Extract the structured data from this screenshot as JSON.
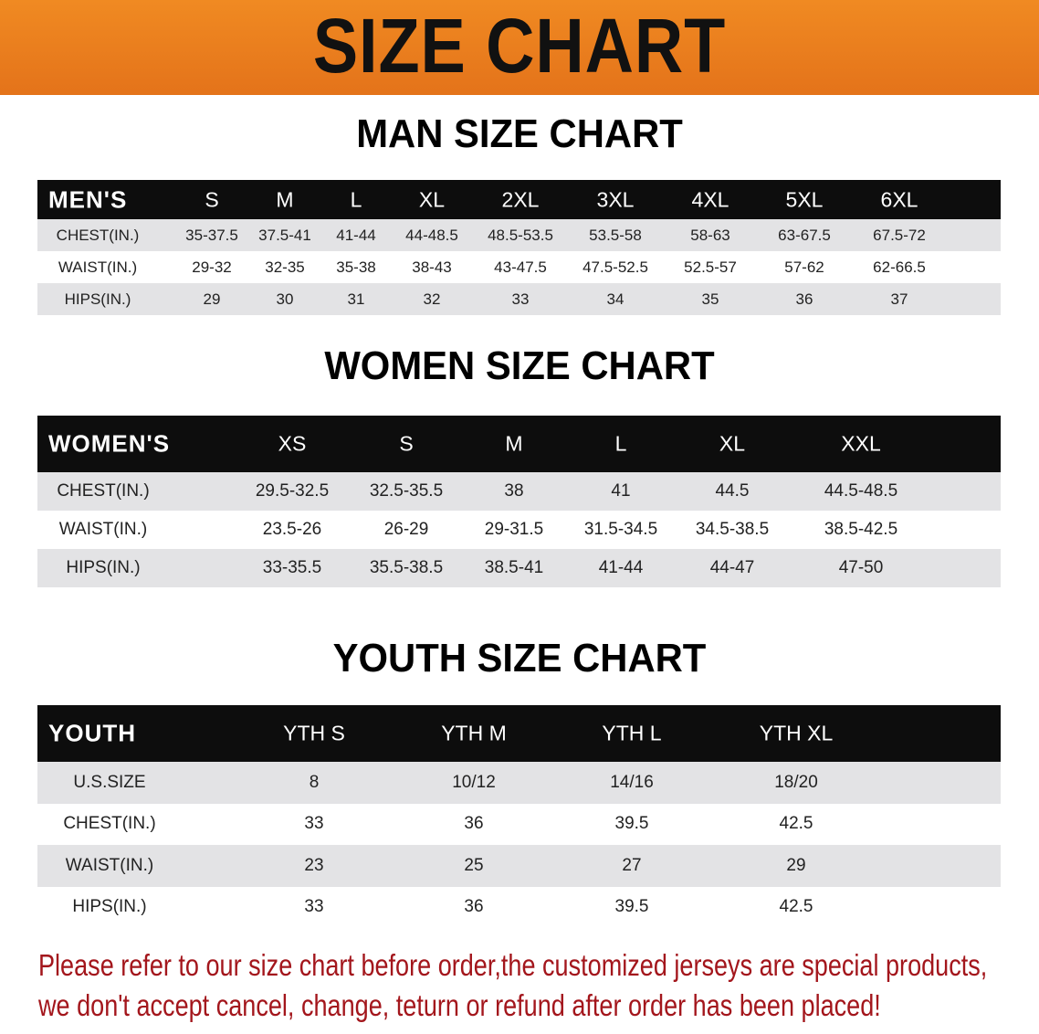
{
  "banner": {
    "title": "SIZE CHART",
    "color": "#e97c1e"
  },
  "men": {
    "title": "MAN SIZE CHART",
    "header": [
      "MEN'S",
      "S",
      "M",
      "L",
      "XL",
      "2XL",
      "3XL",
      "4XL",
      "5XL",
      "6XL"
    ],
    "rows": [
      [
        "CHEST(IN.)",
        "35-37.5",
        "37.5-41",
        "41-44",
        "44-48.5",
        "48.5-53.5",
        "53.5-58",
        "58-63",
        "63-67.5",
        "67.5-72"
      ],
      [
        "WAIST(IN.)",
        "29-32",
        "32-35",
        "35-38",
        "38-43",
        "43-47.5",
        "47.5-52.5",
        "52.5-57",
        "57-62",
        "62-66.5"
      ],
      [
        "HIPS(IN.)",
        "29",
        "30",
        "31",
        "32",
        "33",
        "34",
        "35",
        "36",
        "37"
      ]
    ]
  },
  "women": {
    "title": "WOMEN SIZE CHART",
    "header": [
      "WOMEN'S",
      "XS",
      "S",
      "M",
      "L",
      "XL",
      "XXL"
    ],
    "rows": [
      [
        "CHEST(IN.)",
        "29.5-32.5",
        "32.5-35.5",
        "38",
        "41",
        "44.5",
        "44.5-48.5"
      ],
      [
        "WAIST(IN.)",
        "23.5-26",
        "26-29",
        "29-31.5",
        "31.5-34.5",
        "34.5-38.5",
        "38.5-42.5"
      ],
      [
        "HIPS(IN.)",
        "33-35.5",
        "35.5-38.5",
        "38.5-41",
        "41-44",
        "44-47",
        "47-50"
      ]
    ]
  },
  "youth": {
    "title": "YOUTH SIZE CHART",
    "header": [
      "YOUTH",
      "YTH S",
      "YTH M",
      "YTH L",
      "YTH XL"
    ],
    "rows": [
      [
        "U.S.SIZE",
        "8",
        "10/12",
        "14/16",
        "18/20"
      ],
      [
        "CHEST(IN.)",
        "33",
        "36",
        "39.5",
        "42.5"
      ],
      [
        "WAIST(IN.)",
        "23",
        "25",
        "27",
        "29"
      ],
      [
        "HIPS(IN.)",
        "33",
        "36",
        "39.5",
        "42.5"
      ]
    ]
  },
  "notice": {
    "line1": "Please refer to our size chart before order,the customized jerseys are special products,",
    "line2": "we don't accept cancel, change, teturn or refund after order has been placed!",
    "color": "#a3161c"
  }
}
